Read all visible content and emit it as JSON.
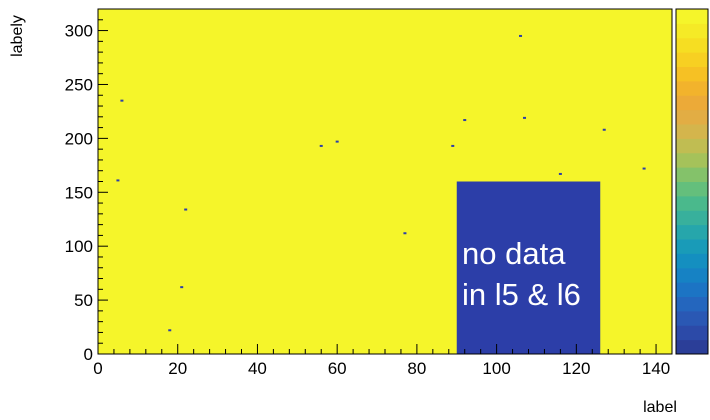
{
  "chart_data": {
    "type": "heatmap",
    "title": "",
    "xlabel": "label",
    "ylabel": "labely",
    "xlim": [
      0,
      144
    ],
    "ylim": [
      0,
      320
    ],
    "x_ticks": [
      0,
      20,
      40,
      60,
      80,
      100,
      120,
      140
    ],
    "y_ticks": [
      0,
      50,
      100,
      150,
      200,
      250,
      300
    ],
    "background_color": "#f5f52a",
    "frame_color": "#000000",
    "no_data_region": {
      "x": [
        90,
        126
      ],
      "y": [
        0,
        160
      ],
      "color": "#2c3ea8",
      "annotation_lines": [
        "no data",
        "in l5 & l6"
      ],
      "annotation_color": "#ffffff"
    },
    "sparse_cells": [
      {
        "x": 18,
        "y": 22
      },
      {
        "x": 21,
        "y": 62
      },
      {
        "x": 22,
        "y": 134
      },
      {
        "x": 5,
        "y": 161
      },
      {
        "x": 6,
        "y": 235
      },
      {
        "x": 56,
        "y": 193
      },
      {
        "x": 60,
        "y": 197
      },
      {
        "x": 77,
        "y": 112
      },
      {
        "x": 89,
        "y": 193
      },
      {
        "x": 92,
        "y": 217
      },
      {
        "x": 106,
        "y": 295
      },
      {
        "x": 107,
        "y": 219
      },
      {
        "x": 116,
        "y": 167
      },
      {
        "x": 127,
        "y": 208
      },
      {
        "x": 137,
        "y": 172
      }
    ],
    "colorbar": {
      "colors": [
        "#2b3e98",
        "#2c4aa8",
        "#2a58b4",
        "#2466be",
        "#1c74c4",
        "#1682c4",
        "#148fc0",
        "#199bb8",
        "#26a6ab",
        "#38b09c",
        "#4ab98c",
        "#64bf7c",
        "#84c26a",
        "#a5c25a",
        "#c0bd52",
        "#d4b54c",
        "#e2ad44",
        "#ecaa38",
        "#f2b32c",
        "#f6c124",
        "#f7d022",
        "#f6de22",
        "#f5ea26",
        "#f5f52a"
      ]
    }
  }
}
